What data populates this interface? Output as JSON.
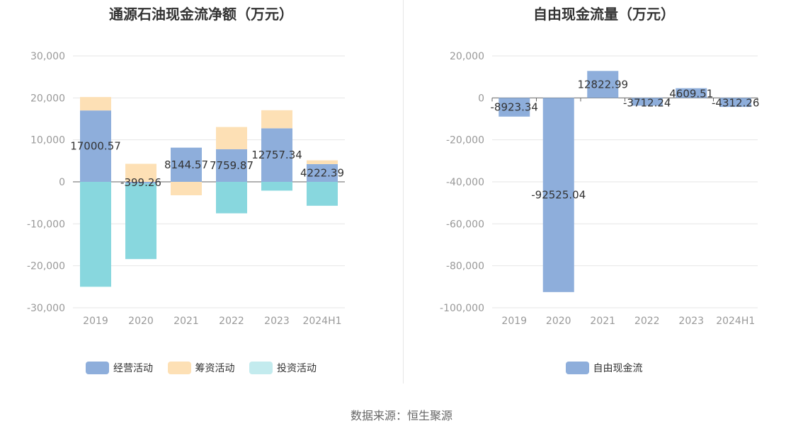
{
  "colors": {
    "operating": "#8eaedb",
    "financing": "#fde0b5",
    "investing": "#88d7de",
    "investing_legend": "#c3ebee",
    "fcf": "#8eaedb"
  },
  "source": "数据来源：恒生聚源",
  "chart_data": [
    {
      "type": "bar",
      "stacked": true,
      "title": "通源石油现金流净额（万元）",
      "categories": [
        "2019",
        "2020",
        "2021",
        "2022",
        "2023",
        "2024H1"
      ],
      "ylim": [
        -30000,
        30000
      ],
      "yticks": [
        30000,
        20000,
        10000,
        0,
        -10000,
        -20000,
        -30000
      ],
      "ytick_labels": [
        "30,000",
        "20,000",
        "10,000",
        "0",
        "-10,000",
        "-20,000",
        "-30,000"
      ],
      "legend_position": "bottom",
      "series": [
        {
          "name": "经营活动",
          "values": [
            17000.57,
            -399.26,
            8144.57,
            7759.87,
            12757.34,
            4222.39
          ]
        },
        {
          "name": "筹资活动",
          "values": [
            3200,
            4300,
            -3200,
            5300,
            4300,
            900
          ]
        },
        {
          "name": "投资活动",
          "values": [
            -25000,
            -18000,
            0,
            -7500,
            -2100,
            -5700
          ]
        }
      ],
      "data_labels": [
        "17000.57",
        "-399.26",
        "8144.57",
        "7759.87",
        "12757.34",
        "4222.39"
      ]
    },
    {
      "type": "bar",
      "title": "自由现金流量（万元）",
      "categories": [
        "2019",
        "2020",
        "2021",
        "2022",
        "2023",
        "2024H1"
      ],
      "ylim": [
        -100000,
        20000
      ],
      "yticks": [
        20000,
        0,
        -20000,
        -40000,
        -60000,
        -80000,
        -100000
      ],
      "ytick_labels": [
        "20,000",
        "0",
        "-20,000",
        "-40,000",
        "-60,000",
        "-80,000",
        "-100,000"
      ],
      "legend_position": "bottom",
      "series": [
        {
          "name": "自由现金流",
          "values": [
            -8923.34,
            -92525.04,
            12822.99,
            -3712.24,
            4609.51,
            -4312.26
          ]
        }
      ],
      "data_labels": [
        "-8923.34",
        "-92525.04",
        "12822.99",
        "-3712.24",
        "4609.51",
        "-4312.26"
      ]
    }
  ]
}
